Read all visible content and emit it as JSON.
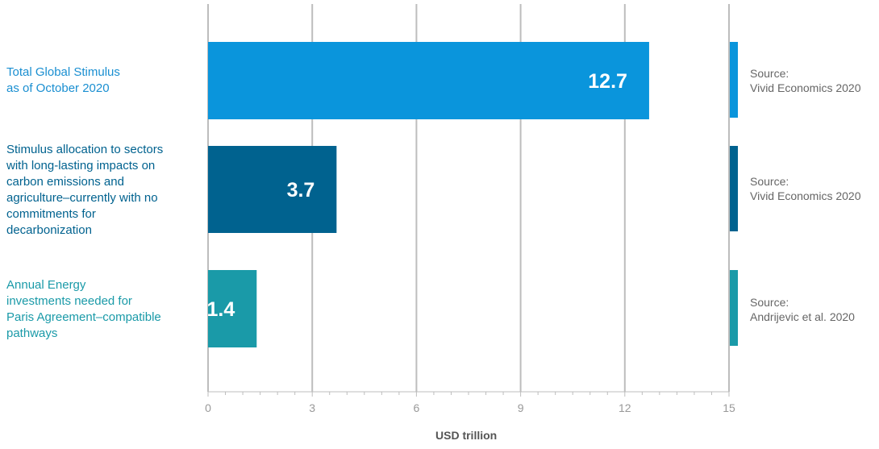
{
  "chart_data": {
    "type": "bar",
    "orientation": "horizontal",
    "categories": [
      "Total Global Stimulus\nas of October 2020",
      "Stimulus allocation to sectors\nwith long-lasting impacts on\ncarbon emissions and\nagriculture–currently with no\ncommitments for\ndecarbonization",
      "Annual Energy\ninvestments needed for\nParis Agreement–compatible\npathways"
    ],
    "values": [
      12.7,
      3.7,
      1.4
    ],
    "value_labels": [
      "12.7",
      "3.7",
      "1.4"
    ],
    "colors": [
      "#0a95dc",
      "#00628f",
      "#1a9aa8"
    ],
    "label_colors": [
      "#1a8fd1",
      "#00628f",
      "#1a9aa8"
    ],
    "sources": [
      "Source:\nVivid Economics 2020",
      "Source:\nVivid Economics 2020",
      "Source:\nAndrijevic et al. 2020"
    ],
    "xlabel": "USD trillion",
    "xlim": [
      0,
      15
    ],
    "xticks": [
      "0",
      "3",
      "6",
      "9",
      "12",
      "15"
    ],
    "grid": true
  }
}
